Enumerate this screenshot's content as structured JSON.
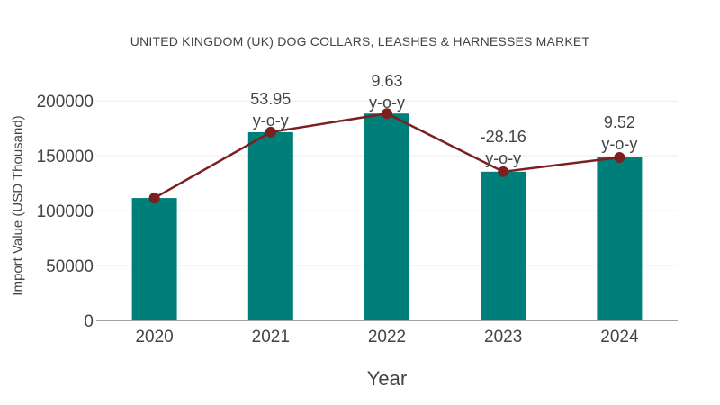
{
  "chart_data": {
    "type": "bar",
    "title": "UNITED KINGDOM (UK) DOG COLLARS, LEASHES & HARNESSES MARKET",
    "xlabel": "Year",
    "ylabel": "Import Value (USD Thousand)",
    "categories": [
      "2020",
      "2021",
      "2022",
      "2023",
      "2024"
    ],
    "series": [
      {
        "type": "bar",
        "values": [
          111500,
          171500,
          188500,
          135500,
          148500
        ],
        "color": "#007f7a"
      },
      {
        "type": "line",
        "values": [
          111500,
          171500,
          188500,
          135500,
          148500
        ],
        "color": "#7b1f1f"
      }
    ],
    "annotations": [
      {
        "category": "2021",
        "value": "53.95",
        "unit": "y-o-y"
      },
      {
        "category": "2022",
        "value": "9.63",
        "unit": "y-o-y"
      },
      {
        "category": "2023",
        "value": "-28.16",
        "unit": "y-o-y"
      },
      {
        "category": "2024",
        "value": "9.52",
        "unit": "y-o-y"
      }
    ],
    "yticks": [
      "0",
      "50000",
      "100000",
      "150000",
      "200000"
    ],
    "ylim": [
      0,
      210000
    ],
    "grid": true
  }
}
